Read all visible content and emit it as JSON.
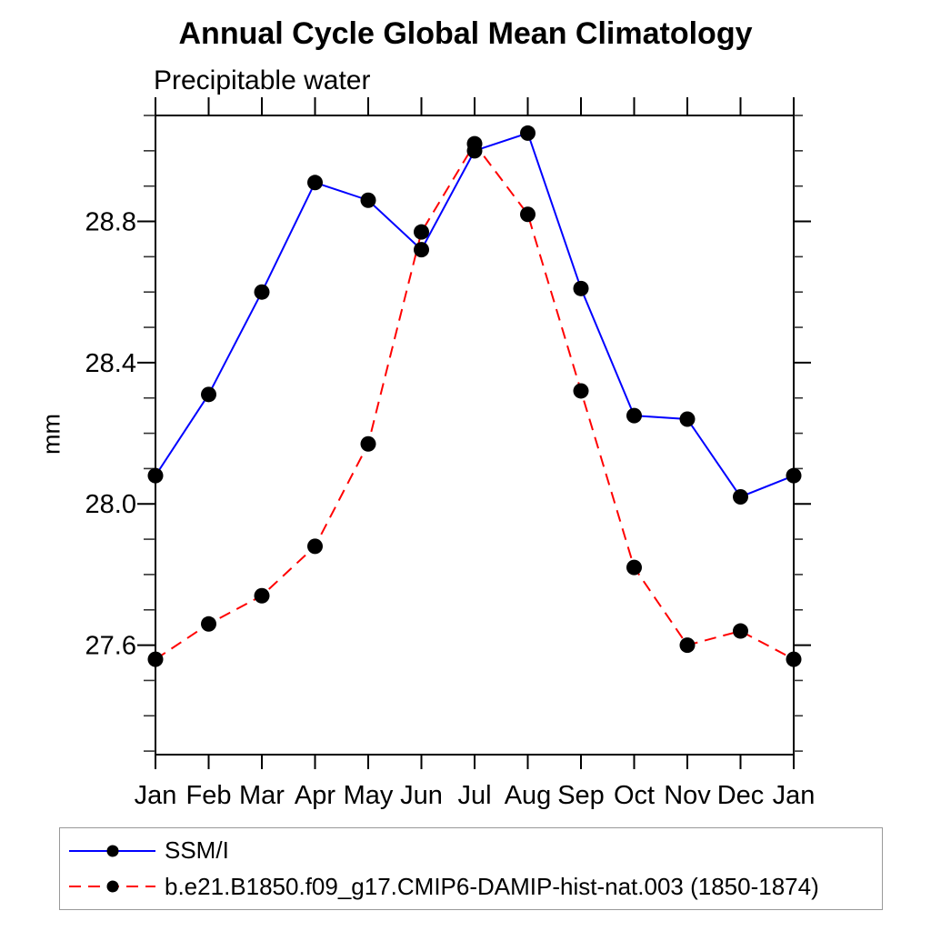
{
  "chart": {
    "title": "Annual Cycle Global Mean Climatology",
    "subtitle": "Precipitable water",
    "ylabel": "mm"
  },
  "chart_data": {
    "type": "line",
    "title": "Annual Cycle Global Mean Climatology",
    "subtitle": "Precipitable water",
    "xlabel": "",
    "ylabel": "mm",
    "categories": [
      "Jan",
      "Feb",
      "Mar",
      "Apr",
      "May",
      "Jun",
      "Jul",
      "Aug",
      "Sep",
      "Oct",
      "Nov",
      "Dec",
      "Jan"
    ],
    "ylim": [
      27.29,
      29.1
    ],
    "yticks_major": [
      27.6,
      28.0,
      28.4,
      28.8
    ],
    "ytick_minor_step": 0.1,
    "grid": false,
    "legend_position": "bottom-left-box",
    "axis_color": "#000000",
    "marker": "filled-circle",
    "marker_color": "#000000",
    "series": [
      {
        "name": "SSM/I",
        "color": "#0000ff",
        "line_style": "solid",
        "values": [
          28.08,
          28.31,
          28.6,
          28.91,
          28.86,
          28.72,
          29.0,
          29.05,
          28.61,
          28.25,
          28.24,
          28.02,
          28.08
        ]
      },
      {
        "name": "b.e21.B1850.f09_g17.CMIP6-DAMIP-hist-nat.003 (1850-1874)",
        "color": "#ff0000",
        "line_style": "dashed",
        "values": [
          27.56,
          27.66,
          27.74,
          27.88,
          28.17,
          28.77,
          29.02,
          28.82,
          28.32,
          27.82,
          27.6,
          27.64,
          27.56
        ]
      }
    ]
  }
}
